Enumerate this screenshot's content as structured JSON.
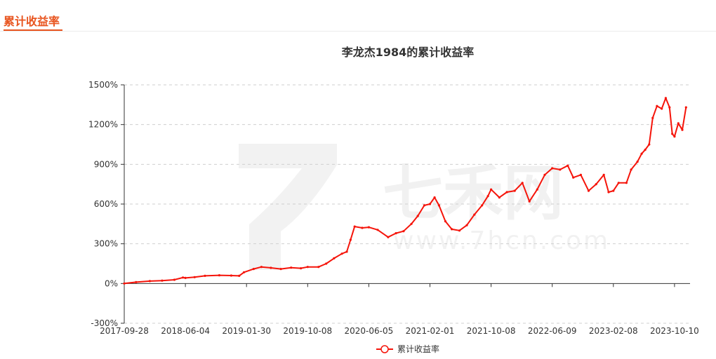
{
  "tab": {
    "title": "累计收益率"
  },
  "watermark": {
    "brand": "七禾网",
    "url": "www.7hcn.com"
  },
  "chart_data": {
    "type": "line",
    "title": "李龙杰1984的累计收益率",
    "xlabel": "",
    "ylabel": "",
    "x_tick_labels": [
      "2017-09-28",
      "2018-06-04",
      "2019-01-30",
      "2019-10-08",
      "2020-06-05",
      "2021-02-01",
      "2021-10-08",
      "2022-06-09",
      "2023-02-08",
      "2023-10-10"
    ],
    "y_tick_labels": [
      "-300%",
      "0%",
      "300%",
      "600%",
      "900%",
      "1200%",
      "1500%"
    ],
    "ylim": [
      -300,
      1500
    ],
    "y_unit": "%",
    "grid": "horizontal-dashed",
    "legend_position": "bottom-center",
    "series": [
      {
        "name": "累计收益率",
        "color": "#f5140a",
        "points": [
          [
            "2017-09-28",
            0
          ],
          [
            "2017-11-15",
            10
          ],
          [
            "2018-01-10",
            18
          ],
          [
            "2018-03-01",
            22
          ],
          [
            "2018-04-20",
            28
          ],
          [
            "2018-05-25",
            45
          ],
          [
            "2018-06-04",
            42
          ],
          [
            "2018-07-10",
            48
          ],
          [
            "2018-08-20",
            58
          ],
          [
            "2018-10-15",
            62
          ],
          [
            "2018-12-01",
            60
          ],
          [
            "2019-01-01",
            58
          ],
          [
            "2019-01-20",
            85
          ],
          [
            "2019-02-28",
            110
          ],
          [
            "2019-04-01",
            125
          ],
          [
            "2019-05-10",
            118
          ],
          [
            "2019-06-20",
            110
          ],
          [
            "2019-08-01",
            120
          ],
          [
            "2019-09-10",
            115
          ],
          [
            "2019-10-08",
            125
          ],
          [
            "2019-11-20",
            125
          ],
          [
            "2019-12-20",
            150
          ],
          [
            "2020-01-20",
            190
          ],
          [
            "2020-02-20",
            225
          ],
          [
            "2020-03-10",
            240
          ],
          [
            "2020-03-25",
            330
          ],
          [
            "2020-04-10",
            430
          ],
          [
            "2020-05-10",
            420
          ],
          [
            "2020-06-05",
            425
          ],
          [
            "2020-07-10",
            405
          ],
          [
            "2020-08-20",
            350
          ],
          [
            "2020-09-20",
            380
          ],
          [
            "2020-10-20",
            395
          ],
          [
            "2020-11-20",
            450
          ],
          [
            "2020-12-15",
            510
          ],
          [
            "2021-01-10",
            590
          ],
          [
            "2021-02-01",
            600
          ],
          [
            "2021-02-20",
            650
          ],
          [
            "2021-03-10",
            590
          ],
          [
            "2021-04-05",
            470
          ],
          [
            "2021-05-01",
            410
          ],
          [
            "2021-06-01",
            400
          ],
          [
            "2021-07-01",
            440
          ],
          [
            "2021-08-01",
            520
          ],
          [
            "2021-09-01",
            590
          ],
          [
            "2021-09-25",
            660
          ],
          [
            "2021-10-08",
            710
          ],
          [
            "2021-11-10",
            650
          ],
          [
            "2021-12-10",
            690
          ],
          [
            "2022-01-10",
            700
          ],
          [
            "2022-02-10",
            760
          ],
          [
            "2022-03-10",
            620
          ],
          [
            "2022-04-10",
            710
          ],
          [
            "2022-05-10",
            820
          ],
          [
            "2022-06-09",
            870
          ],
          [
            "2022-07-10",
            860
          ],
          [
            "2022-08-10",
            890
          ],
          [
            "2022-09-01",
            800
          ],
          [
            "2022-10-01",
            820
          ],
          [
            "2022-11-01",
            700
          ],
          [
            "2022-12-01",
            750
          ],
          [
            "2023-01-01",
            820
          ],
          [
            "2023-01-20",
            690
          ],
          [
            "2023-02-08",
            700
          ],
          [
            "2023-03-01",
            760
          ],
          [
            "2023-04-01",
            760
          ],
          [
            "2023-04-20",
            860
          ],
          [
            "2023-05-15",
            920
          ],
          [
            "2023-06-01",
            980
          ],
          [
            "2023-06-15",
            1010
          ],
          [
            "2023-07-01",
            1050
          ],
          [
            "2023-07-15",
            1250
          ],
          [
            "2023-08-01",
            1340
          ],
          [
            "2023-08-20",
            1320
          ],
          [
            "2023-09-05",
            1400
          ],
          [
            "2023-09-20",
            1330
          ],
          [
            "2023-10-01",
            1130
          ],
          [
            "2023-10-10",
            1110
          ],
          [
            "2023-10-25",
            1210
          ],
          [
            "2023-11-10",
            1160
          ],
          [
            "2023-11-25",
            1330
          ]
        ]
      }
    ]
  }
}
